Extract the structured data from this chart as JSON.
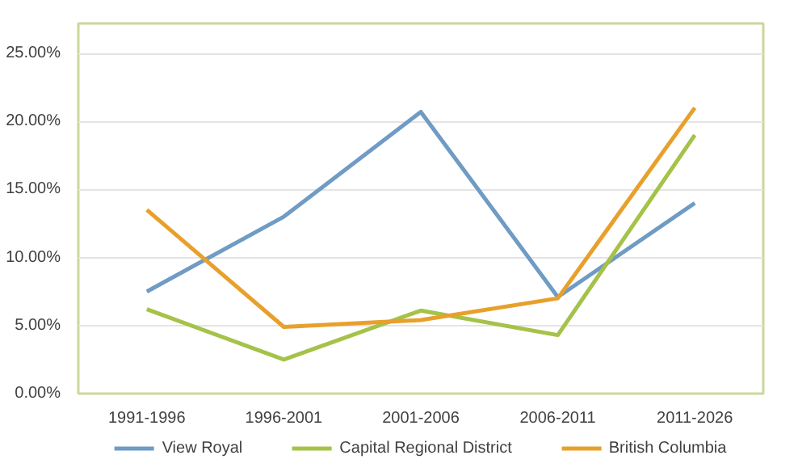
{
  "chart_data": {
    "type": "line",
    "categories": [
      "1991-1996",
      "1996-2001",
      "2001-2006",
      "2006-2011",
      "2011-2026"
    ],
    "series": [
      {
        "name": "View Royal",
        "color": "#6f9bc4",
        "values": [
          7.5,
          13.0,
          20.7,
          7.1,
          14.0
        ]
      },
      {
        "name": "Capital Regional District",
        "color": "#a5c249",
        "values": [
          6.2,
          2.5,
          6.1,
          4.3,
          19.0
        ]
      },
      {
        "name": "British Columbia",
        "color": "#e8a02c",
        "values": [
          13.5,
          4.9,
          5.4,
          7.0,
          21.0
        ]
      }
    ],
    "ylim": [
      0,
      27.2
    ],
    "yticks": [
      {
        "value": 0,
        "label": "0.00%"
      },
      {
        "value": 5,
        "label": "5.00%"
      },
      {
        "value": 10,
        "label": "10.00%"
      },
      {
        "value": 15,
        "label": "15.00%"
      },
      {
        "value": 20,
        "label": "20.00%"
      },
      {
        "value": 25,
        "label": "25.00%"
      }
    ],
    "grid": "y",
    "legend": "bottom",
    "marker": "none",
    "line_style": "solid"
  }
}
